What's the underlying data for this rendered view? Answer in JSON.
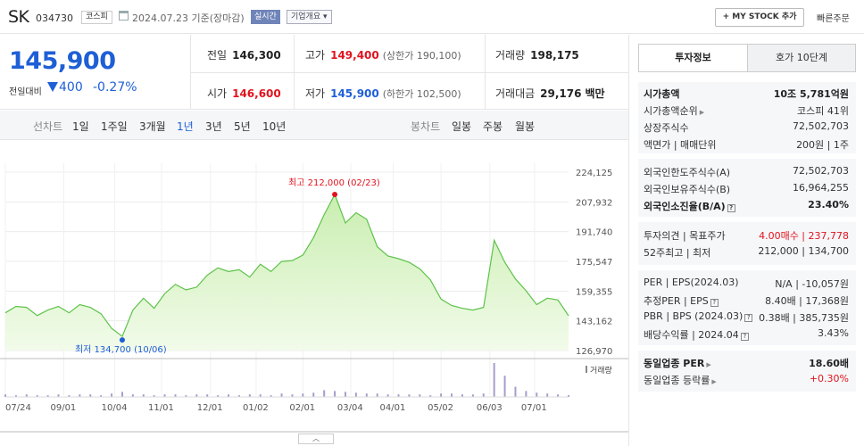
{
  "header": {
    "name": "SK",
    "code": "034730",
    "market": "코스피",
    "date": "2024.07.23",
    "date_suffix": "기준(장마감)",
    "realtime": "실시간",
    "company_overview": "기업개요",
    "mystock_button": "+ MY STOCK 추가",
    "quick_order": "빠른주문"
  },
  "price": {
    "current": "145,900",
    "vs_label": "전일대비",
    "change": "400",
    "change_pct": "-0.27%",
    "prev_close_label": "전일",
    "prev_close": "146,300",
    "high_label": "고가",
    "high": "149,400",
    "upper_limit": "(상한가 190,100)",
    "volume_label": "거래량",
    "volume": "198,175",
    "open_label": "시가",
    "open": "146,600",
    "low_label": "저가",
    "low": "145,900",
    "lower_limit": "(하한가 102,500)",
    "amount_label": "거래대금",
    "amount": "29,176",
    "amount_unit": "백만"
  },
  "tabs": {
    "line_chart": "선차트",
    "periods": [
      "1일",
      "1주일",
      "3개월",
      "1년",
      "3년",
      "5년",
      "10년"
    ],
    "active_period": "1년",
    "candle_chart": "봉차트",
    "candles": [
      "일봉",
      "주봉",
      "월봉"
    ]
  },
  "chart_data": {
    "type": "area",
    "x": [
      "07/24",
      "07/31",
      "08/07",
      "08/14",
      "08/21",
      "08/28",
      "09/04",
      "09/11",
      "09/18",
      "09/25",
      "10/02",
      "10/06",
      "10/13",
      "10/20",
      "10/27",
      "11/03",
      "11/10",
      "11/17",
      "11/24",
      "12/01",
      "12/08",
      "12/15",
      "12/22",
      "12/29",
      "01/05",
      "01/12",
      "01/19",
      "01/26",
      "02/02",
      "02/09",
      "02/16",
      "02/23",
      "03/01",
      "03/08",
      "03/15",
      "03/22",
      "03/29",
      "04/05",
      "04/12",
      "04/19",
      "04/26",
      "05/03",
      "05/10",
      "05/17",
      "05/24",
      "05/31",
      "06/07",
      "06/14",
      "06/21",
      "06/28",
      "07/05",
      "07/12",
      "07/19",
      "07/23"
    ],
    "values": [
      147500,
      151000,
      150500,
      146000,
      149000,
      151000,
      147500,
      152000,
      150500,
      147000,
      139000,
      134700,
      149000,
      155500,
      150000,
      158000,
      163000,
      160000,
      161500,
      168000,
      172000,
      170000,
      171000,
      167000,
      174000,
      170000,
      175500,
      176000,
      179000,
      188500,
      201000,
      212000,
      196500,
      202000,
      198500,
      183500,
      178500,
      177000,
      175000,
      171500,
      165500,
      155000,
      151500,
      150000,
      149000,
      150500,
      187000,
      175000,
      166000,
      159500,
      152000,
      155500,
      154500,
      145900
    ],
    "ylim": [
      126970,
      224125
    ],
    "yticks": [
      "224,125",
      "207,932",
      "191,740",
      "175,547",
      "159,355",
      "143,162",
      "126,970"
    ],
    "xticks": [
      "07/24",
      "09/01",
      "10/04",
      "11/01",
      "12/01",
      "01/02",
      "02/01",
      "03/04",
      "04/01",
      "05/02",
      "06/03",
      "07/01"
    ],
    "max_label": "최고 212,000 (02/23)",
    "min_label": "최저 134,700 (10/06)",
    "volume_label": "거래량",
    "volume": [
      3,
      2,
      3,
      2,
      2,
      3,
      2,
      3,
      3,
      2,
      4,
      6,
      3,
      3,
      2,
      3,
      3,
      2,
      3,
      3,
      2,
      3,
      2,
      3,
      3,
      2,
      4,
      3,
      4,
      5,
      8,
      7,
      6,
      5,
      4,
      4,
      3,
      3,
      3,
      3,
      2,
      4,
      4,
      3,
      3,
      4,
      40,
      25,
      12,
      7,
      5,
      4,
      3,
      2
    ],
    "line_color": "#5ec24a",
    "fill_color": "#dff5cf",
    "grid": true
  },
  "invest": {
    "tab_info": "투자정보",
    "tab_orderbook": "호가 10단계",
    "sec1": [
      {
        "k": "시가총액",
        "v": "10조 5,781억원",
        "bold": true
      },
      {
        "k": "시가총액순위",
        "v": "코스피 41위"
      },
      {
        "k": "상장주식수",
        "v": "72,502,703"
      },
      {
        "k": "액면가 | 매매단위",
        "v": "200원 | 1주"
      }
    ],
    "sec2": [
      {
        "k": "외국인한도주식수(A)",
        "v": "72,502,703"
      },
      {
        "k": "외국인보유주식수(B)",
        "v": "16,964,255"
      },
      {
        "k": "외국인소진율(B/A)",
        "v": "23.40%",
        "bold": true
      }
    ],
    "sec3": [
      {
        "k": "투자의견 | 목표주가",
        "v": "4.00매수 | 237,778"
      },
      {
        "k": "52주최고 | 최저",
        "v": "212,000 | 134,700"
      }
    ],
    "sec4": [
      {
        "k": "PER | EPS(2024.03)",
        "v": "N/A | -10,057원"
      },
      {
        "k": "추정PER | EPS",
        "v": "8.40배 | 17,368원"
      },
      {
        "k": "PBR | BPS (2024.03)",
        "v": "0.38배 | 385,735원"
      },
      {
        "k": "배당수익률 | 2024.04",
        "v": "3.43%"
      }
    ],
    "sec5": [
      {
        "k": "동일업종 PER",
        "v": "18.60배",
        "bold": true
      },
      {
        "k": "동일업종 등락률",
        "v": "+0.30%",
        "red": true
      }
    ]
  }
}
